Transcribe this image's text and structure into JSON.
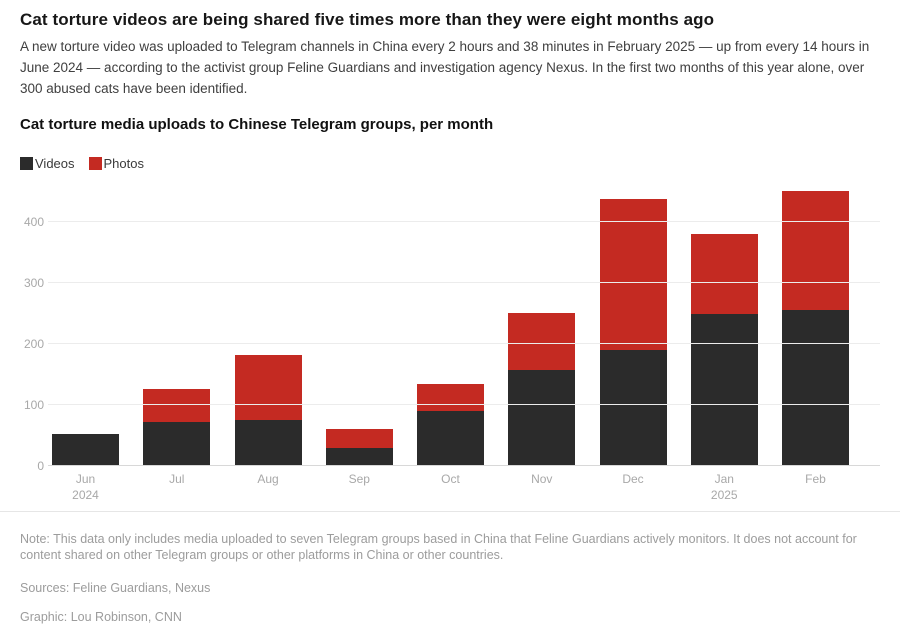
{
  "header": {
    "title": "Cat torture videos are being shared five times more than they were eight months ago",
    "subtitle": "A new torture video was uploaded to Telegram channels in China every 2 hours and 38 minutes in February 2025 — up from every 14 hours in June 2024 — according to the activist group Feline Guardians and investigation agency Nexus. In the first two months of this year alone, over 300 abused cats have been identified."
  },
  "chart": {
    "title": "Cat torture media uploads to Chinese Telegram groups, per month"
  },
  "chart_data": {
    "type": "bar",
    "stacked": true,
    "title": "Cat torture media uploads to Chinese Telegram groups, per month",
    "categories": [
      "Jun",
      "Jul",
      "Aug",
      "Sep",
      "Oct",
      "Nov",
      "Dec",
      "Jan",
      "Feb"
    ],
    "category_sublabels": [
      "2024",
      "",
      "",
      "",
      "",
      "",
      "",
      "2025",
      ""
    ],
    "series": [
      {
        "name": "Videos",
        "color": "#2b2b2b",
        "values": [
          50,
          70,
          73,
          28,
          88,
          155,
          188,
          248,
          255
        ]
      },
      {
        "name": "Photos",
        "color": "#c42a22",
        "values": [
          0,
          55,
          107,
          31,
          45,
          95,
          249,
          131,
          195
        ]
      }
    ],
    "totals": [
      50,
      125,
      180,
      59,
      133,
      250,
      437,
      379,
      450
    ],
    "xlabel": "",
    "ylabel": "",
    "ylim": [
      0,
      470
    ],
    "yticks": [
      0,
      100,
      200,
      300,
      400
    ],
    "grid": true,
    "legend_position": "top-left",
    "colors": {
      "videos": "#2b2b2b",
      "photos": "#c42a22",
      "grid": "#ececec",
      "axis_text": "#a8a8a8"
    }
  },
  "footer": {
    "note": "Note: This data only includes media uploaded to seven Telegram groups based in China that Feline Guardians actively monitors. It does not account for content shared on other Telegram groups or other platforms in China or other countries.",
    "sources": "Sources: Feline Guardians, Nexus",
    "graphic": "Graphic: Lou Robinson, CNN"
  }
}
